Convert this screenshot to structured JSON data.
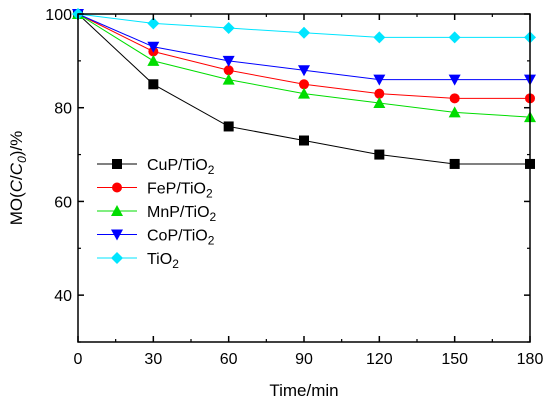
{
  "chart_data": {
    "type": "line",
    "xlabel": "Time/min",
    "ylabel": {
      "pre": "MO(",
      "c": "C",
      "slash": "/",
      "c0": "C",
      "sub0": "0",
      "post": ")/%"
    },
    "xlim": [
      0,
      180
    ],
    "ylim": [
      30,
      100
    ],
    "xticks": [
      0,
      30,
      60,
      90,
      120,
      150,
      180
    ],
    "yticks": [
      40,
      60,
      80,
      100
    ],
    "x": [
      0,
      30,
      60,
      90,
      120,
      150,
      180
    ],
    "grid": false,
    "legend_position": "center-left",
    "series": [
      {
        "name": "CuP/TiO2",
        "label_main": "CuP/TiO",
        "label_sub": "2",
        "color": "#000000",
        "marker": "square",
        "values": [
          100,
          85,
          76,
          73,
          70,
          68,
          68
        ]
      },
      {
        "name": "FeP/TiO2",
        "label_main": "FeP/TiO",
        "label_sub": "2",
        "color": "#ff0000",
        "marker": "circle",
        "values": [
          100,
          92,
          88,
          85,
          83,
          82,
          82
        ]
      },
      {
        "name": "MnP/TiO2",
        "label_main": "MnP/TiO",
        "label_sub": "2",
        "color": "#00dd00",
        "marker": "triangle-up",
        "values": [
          100,
          90,
          86,
          83,
          81,
          79,
          78
        ]
      },
      {
        "name": "CoP/TiO2",
        "label_main": "CoP/TiO",
        "label_sub": "2",
        "color": "#0000ff",
        "marker": "triangle-down",
        "values": [
          100,
          93,
          90,
          88,
          86,
          86,
          86
        ]
      },
      {
        "name": "TiO2",
        "label_main": "TiO",
        "label_sub": "2",
        "color": "#00e5ff",
        "marker": "diamond",
        "values": [
          100,
          98,
          97,
          96,
          95,
          95,
          95
        ]
      }
    ]
  }
}
